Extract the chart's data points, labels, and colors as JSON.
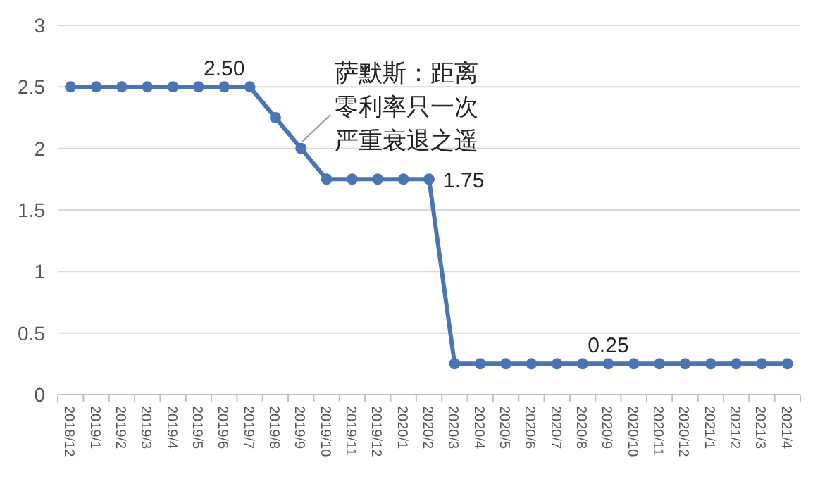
{
  "chart_data": {
    "type": "line",
    "categories": [
      "2018/12",
      "2019/1",
      "2019/2",
      "2019/3",
      "2019/4",
      "2019/5",
      "2019/6",
      "2019/7",
      "2019/8",
      "2019/9",
      "2019/10",
      "2019/11",
      "2019/12",
      "2020/1",
      "2020/2",
      "2020/3",
      "2020/4",
      "2020/5",
      "2020/6",
      "2020/7",
      "2020/8",
      "2020/9",
      "2020/10",
      "2020/11",
      "2020/12",
      "2021/1",
      "2021/2",
      "2021/3",
      "2021/4"
    ],
    "values": [
      2.5,
      2.5,
      2.5,
      2.5,
      2.5,
      2.5,
      2.5,
      2.5,
      2.25,
      2,
      1.75,
      1.75,
      1.75,
      1.75,
      1.75,
      0.25,
      0.25,
      0.25,
      0.25,
      0.25,
      0.25,
      0.25,
      0.25,
      0.25,
      0.25,
      0.25,
      0.25,
      0.25,
      0.25
    ],
    "value_labels": [
      null,
      null,
      null,
      null,
      null,
      null,
      "2.50",
      null,
      null,
      null,
      null,
      null,
      null,
      null,
      "1.75",
      null,
      null,
      null,
      null,
      null,
      null,
      "0.25",
      null,
      null,
      null,
      null,
      null,
      null,
      null
    ],
    "color": "#4a74b4",
    "marker": "circle",
    "line_style": "solid",
    "grid": "y",
    "ylim": [
      0,
      3
    ],
    "yticks": [
      0,
      0.5,
      1,
      1.5,
      2,
      2.5,
      3
    ],
    "annotations": [
      {
        "text": "萨默斯：距离零利率只一次严重衰退之遥",
        "x": "2019/9",
        "y": 2
      }
    ]
  }
}
